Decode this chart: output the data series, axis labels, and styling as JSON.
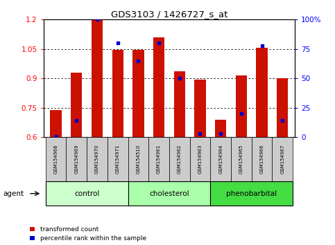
{
  "title": "GDS3103 / 1426727_s_at",
  "samples": [
    "GSM154968",
    "GSM154969",
    "GSM154970",
    "GSM154971",
    "GSM154510",
    "GSM154961",
    "GSM154962",
    "GSM154963",
    "GSM154964",
    "GSM154965",
    "GSM154966",
    "GSM154967"
  ],
  "transformed_count": [
    0.74,
    0.93,
    1.2,
    1.047,
    1.046,
    1.11,
    0.935,
    0.895,
    0.69,
    0.915,
    1.055,
    0.9
  ],
  "percentile_rank": [
    1,
    14,
    100,
    80,
    65,
    80,
    50,
    3,
    3,
    20,
    78,
    14
  ],
  "groups": [
    {
      "label": "control",
      "start": 0,
      "end": 3,
      "color": "#ccffcc"
    },
    {
      "label": "cholesterol",
      "start": 4,
      "end": 7,
      "color": "#aaffaa"
    },
    {
      "label": "phenobarbital",
      "start": 8,
      "end": 11,
      "color": "#44dd44"
    }
  ],
  "ylim_left": [
    0.6,
    1.2
  ],
  "ylim_right": [
    0,
    100
  ],
  "yticks_left": [
    0.6,
    0.75,
    0.9,
    1.05,
    1.2
  ],
  "yticks_right": [
    0,
    25,
    50,
    75,
    100
  ],
  "bar_color": "#cc1100",
  "dot_color": "#0000cc",
  "bg_color": "#ffffff",
  "label_bg": "#cccccc",
  "bar_width": 0.55,
  "base_value": 0.6
}
